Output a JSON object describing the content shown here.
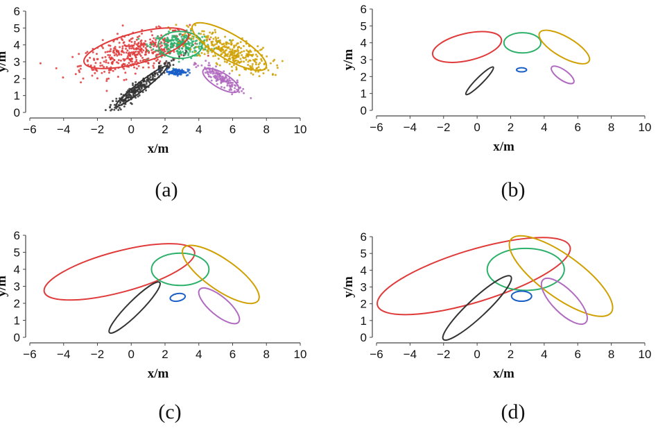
{
  "figure": {
    "panel_labels": [
      "(a)",
      "(b)",
      "(c)",
      "(d)"
    ]
  },
  "colors": {
    "red": "#e03a3a",
    "green": "#2cb06a",
    "gold": "#cfa000",
    "black": "#333333",
    "purple": "#b06ac0",
    "blue": "#1a5fc8"
  },
  "chart_data": [
    {
      "panel": "(a)",
      "type": "scatter",
      "xlabel": "x/m",
      "ylabel": "y/m",
      "xlim": [
        -6,
        10
      ],
      "ylim": [
        0,
        6
      ],
      "xticks": [
        -6,
        -4,
        -2,
        0,
        2,
        4,
        6,
        8,
        10
      ],
      "yticks": [
        0,
        1,
        2,
        3,
        4,
        5,
        6
      ],
      "clusters": [
        {
          "color": "red",
          "points_mean": [
            0.2,
            3.5
          ],
          "points_spread": [
            1.6,
            0.55
          ],
          "count": 420
        },
        {
          "color": "green",
          "points_mean": [
            3.0,
            4.0
          ],
          "points_spread": [
            0.9,
            0.35
          ],
          "count": 260
        },
        {
          "color": "gold",
          "points_mean": [
            5.8,
            3.6
          ],
          "points_spread": [
            1.2,
            0.45
          ],
          "count": 320
        },
        {
          "color": "black",
          "points_mean": [
            0.5,
            1.5
          ],
          "points_spread": [
            1.0,
            0.2
          ],
          "count": 260
        },
        {
          "color": "purple",
          "points_mean": [
            5.3,
            2.0
          ],
          "points_spread": [
            0.6,
            0.35
          ],
          "count": 140
        },
        {
          "color": "blue",
          "points_mean": [
            2.7,
            2.4
          ],
          "points_spread": [
            0.35,
            0.1
          ],
          "count": 90
        }
      ],
      "ellipses": [
        {
          "color": "red",
          "cx": 0.3,
          "cy": 3.8,
          "rx": 3.2,
          "ry": 0.9,
          "angle": 15
        },
        {
          "color": "green",
          "cx": 2.9,
          "cy": 4.0,
          "rx": 1.3,
          "ry": 0.8,
          "angle": 0
        },
        {
          "color": "gold",
          "cx": 5.8,
          "cy": 3.9,
          "rx": 2.5,
          "ry": 0.75,
          "angle": -30
        },
        {
          "color": "black",
          "cx": 0.6,
          "cy": 1.55,
          "rx": 1.9,
          "ry": 0.25,
          "angle": 38
        },
        {
          "color": "purple",
          "cx": 5.3,
          "cy": 1.9,
          "rx": 1.2,
          "ry": 0.45,
          "angle": -30
        },
        {
          "color": "blue",
          "cx": 2.7,
          "cy": 2.4,
          "rx": 0.3,
          "ry": 0.12,
          "angle": 0
        }
      ]
    },
    {
      "panel": "(b)",
      "type": "line",
      "xlabel": "x/m",
      "ylabel": "y/m",
      "xlim": [
        -6,
        10
      ],
      "ylim": [
        0,
        6
      ],
      "xticks": [
        -6,
        -4,
        -2,
        0,
        2,
        4,
        6,
        8,
        10
      ],
      "yticks": [
        0,
        1,
        2,
        3,
        4,
        5,
        6
      ],
      "ellipses": [
        {
          "color": "red",
          "cx": -0.6,
          "cy": 3.75,
          "rx": 2.1,
          "ry": 0.8,
          "angle": 13
        },
        {
          "color": "green",
          "cx": 2.7,
          "cy": 4.0,
          "rx": 1.1,
          "ry": 0.6,
          "angle": 0
        },
        {
          "color": "gold",
          "cx": 5.2,
          "cy": 3.75,
          "rx": 1.7,
          "ry": 0.6,
          "angle": -30
        },
        {
          "color": "black",
          "cx": 0.15,
          "cy": 1.75,
          "rx": 1.15,
          "ry": 0.2,
          "angle": 45
        },
        {
          "color": "purple",
          "cx": 5.1,
          "cy": 2.1,
          "rx": 0.8,
          "ry": 0.3,
          "angle": -35
        },
        {
          "color": "blue",
          "cx": 2.65,
          "cy": 2.4,
          "rx": 0.3,
          "ry": 0.12,
          "angle": 0
        }
      ]
    },
    {
      "panel": "(c)",
      "type": "line",
      "xlabel": "x/m",
      "ylabel": "y/m",
      "xlim": [
        -6,
        10
      ],
      "ylim": [
        0,
        6
      ],
      "xticks": [
        -6,
        -4,
        -2,
        0,
        2,
        4,
        6,
        8,
        10
      ],
      "yticks": [
        0,
        1,
        2,
        3,
        4,
        5,
        6
      ],
      "ellipses": [
        {
          "color": "red",
          "cx": -0.7,
          "cy": 3.85,
          "rx": 4.6,
          "ry": 1.2,
          "angle": 15
        },
        {
          "color": "green",
          "cx": 2.9,
          "cy": 4.0,
          "rx": 1.7,
          "ry": 0.95,
          "angle": 0
        },
        {
          "color": "gold",
          "cx": 5.3,
          "cy": 3.7,
          "rx": 2.7,
          "ry": 0.9,
          "angle": -35
        },
        {
          "color": "black",
          "cx": 0.2,
          "cy": 1.75,
          "rx": 2.1,
          "ry": 0.4,
          "angle": 45
        },
        {
          "color": "purple",
          "cx": 5.2,
          "cy": 1.85,
          "rx": 1.5,
          "ry": 0.55,
          "angle": -40
        },
        {
          "color": "blue",
          "cx": 2.75,
          "cy": 2.35,
          "rx": 0.45,
          "ry": 0.22,
          "angle": 10
        }
      ]
    },
    {
      "panel": "(d)",
      "type": "line",
      "xlabel": "x/m",
      "ylabel": "y/m",
      "xlim": [
        -6,
        10
      ],
      "ylim": [
        0,
        6
      ],
      "xticks": [
        -6,
        -4,
        -2,
        0,
        2,
        4,
        6,
        8,
        10
      ],
      "yticks": [
        0,
        1,
        2,
        3,
        4,
        5,
        6
      ],
      "ellipses": [
        {
          "color": "red",
          "cx": -0.2,
          "cy": 3.65,
          "rx": 6.0,
          "ry": 1.55,
          "angle": 17
        },
        {
          "color": "green",
          "cx": 2.9,
          "cy": 4.05,
          "rx": 2.3,
          "ry": 1.25,
          "angle": 0
        },
        {
          "color": "gold",
          "cx": 5.0,
          "cy": 3.65,
          "rx": 3.7,
          "ry": 1.25,
          "angle": -36
        },
        {
          "color": "black",
          "cx": 0.0,
          "cy": 1.75,
          "rx": 2.75,
          "ry": 0.55,
          "angle": 43
        },
        {
          "color": "purple",
          "cx": 5.2,
          "cy": 2.15,
          "rx": 1.8,
          "ry": 0.7,
          "angle": -45
        },
        {
          "color": "blue",
          "cx": 2.65,
          "cy": 2.45,
          "rx": 0.6,
          "ry": 0.3,
          "angle": 0
        }
      ]
    }
  ]
}
